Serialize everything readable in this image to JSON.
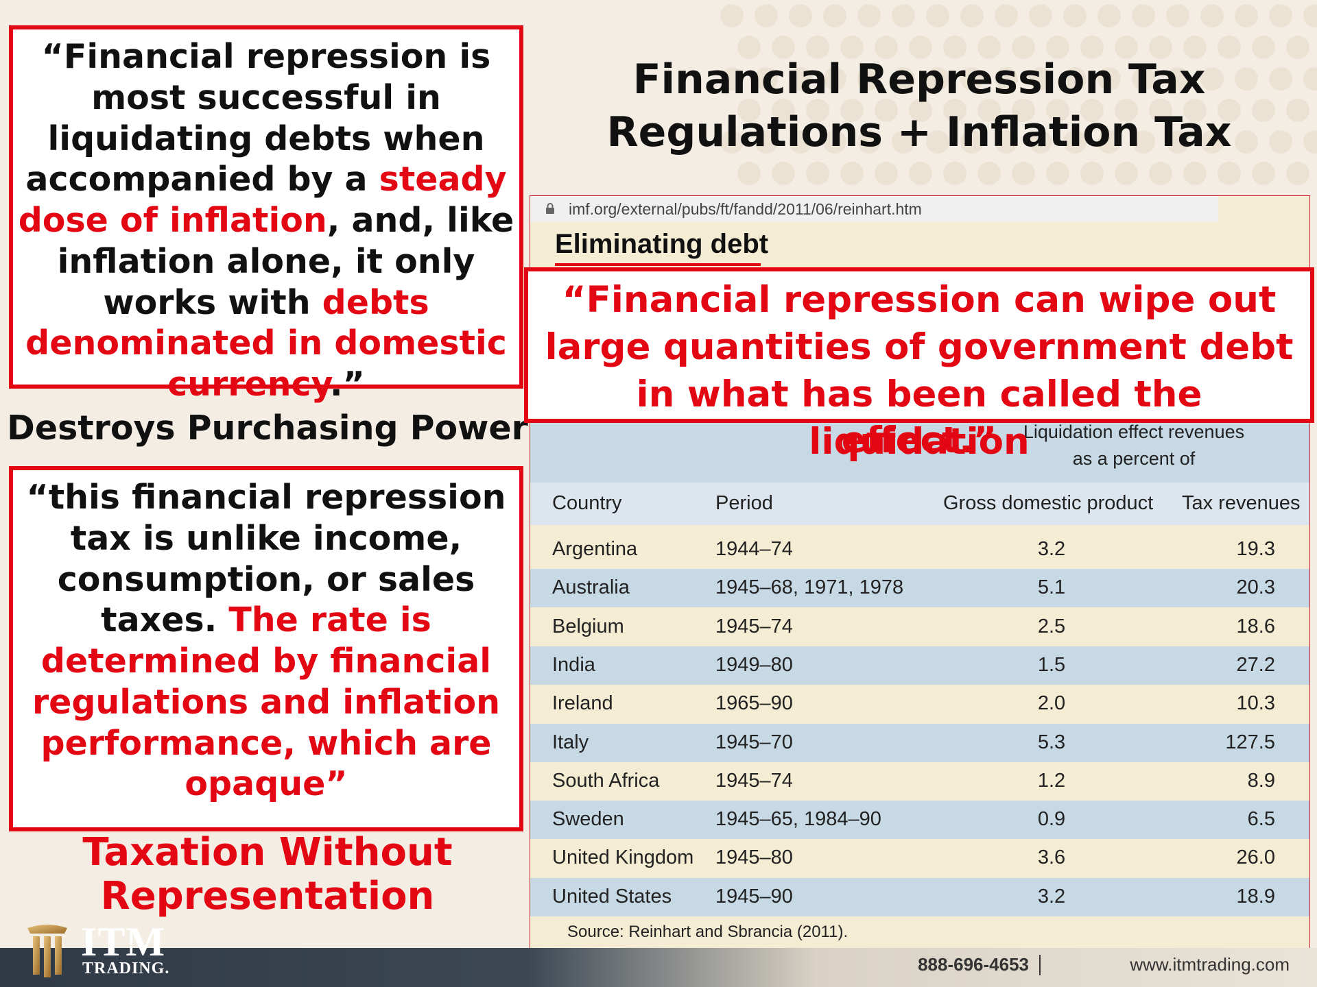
{
  "slide": {
    "main_title_line1": "Financial Repression Tax",
    "main_title_line2": "Regulations + Inflation Tax",
    "quote1": {
      "p1": "“Financial repression is most successful in liquidating debts when accompanied by a ",
      "r1": "steady dose of inflation",
      "p2": ", and, like inflation alone, it only works with ",
      "r2": "debts denominated in domestic currency",
      "p3": ".”"
    },
    "destroys": "Destroys Purchasing Power",
    "quote2": {
      "p1": "“this financial repression tax is unlike income, consumption, or sales taxes. ",
      "r1": "The rate is determined by financial regulations and inflation performance, which are opaque”"
    },
    "taxation": "Taxation Without Representation",
    "liquidation_quote_main": "“Financial repression can wipe out large quantities of government debt in what has been called the liquidation",
    "liquidation_quote_end": "effect.”"
  },
  "imf": {
    "url": "imf.org/external/pubs/ft/fandd/2011/06/reinhart.htm",
    "title": "Eliminating debt",
    "group_header_line1": "Liquidation effect revenues",
    "group_header_line2": "as a percent of",
    "columns": [
      "Country",
      "Period",
      "Gross domestic product",
      "Tax revenues"
    ],
    "rows": [
      {
        "country": "Argentina",
        "period": "1944–74",
        "gdp": "3.2",
        "tax": "19.3"
      },
      {
        "country": "Australia",
        "period": "1945–68, 1971, 1978",
        "gdp": "5.1",
        "tax": "20.3"
      },
      {
        "country": "Belgium",
        "period": "1945–74",
        "gdp": "2.5",
        "tax": "18.6"
      },
      {
        "country": "India",
        "period": "1949–80",
        "gdp": "1.5",
        "tax": "27.2"
      },
      {
        "country": "Ireland",
        "period": "1965–90",
        "gdp": "2.0",
        "tax": "10.3"
      },
      {
        "country": "Italy",
        "period": "1945–70",
        "gdp": "5.3",
        "tax": "127.5"
      },
      {
        "country": "South Africa",
        "period": "1945–74",
        "gdp": "1.2",
        "tax": "8.9"
      },
      {
        "country": "Sweden",
        "period": "1945–65, 1984–90",
        "gdp": "0.9",
        "tax": "6.5"
      },
      {
        "country": "United Kingdom",
        "period": "1945–80",
        "gdp": "3.6",
        "tax": "26.0"
      },
      {
        "country": "United States",
        "period": "1945–90",
        "gdp": "3.2",
        "tax": "18.9"
      }
    ],
    "source": "Source: Reinhart and Sbrancia (2011)."
  },
  "footer": {
    "phone": "888-696-4653",
    "website": "www.itmtrading.com",
    "logo_itm": "ITM",
    "logo_trading": "TRADING."
  },
  "colors": {
    "accent_red": "#e30613",
    "band_blue": "#c8d9e6",
    "panel_cream": "#f5ecd4"
  }
}
